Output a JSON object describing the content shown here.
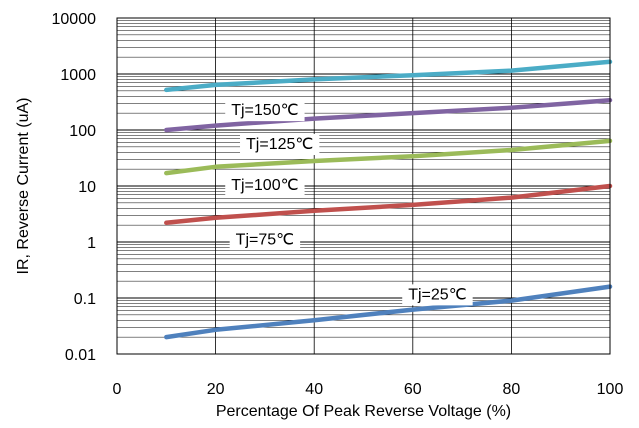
{
  "chart_data": {
    "type": "line",
    "title": "",
    "xlabel": "Percentage Of Peak Reverse Voltage (%)",
    "ylabel": "IR, Reverse Current (uA)",
    "xlim": [
      0,
      100
    ],
    "ylim": [
      0.01,
      10000
    ],
    "yscale": "log",
    "grid": true,
    "x_ticks": [
      "0",
      "20",
      "40",
      "60",
      "80",
      "100"
    ],
    "y_ticks": [
      "0.01",
      "0.1",
      "1",
      "10",
      "100",
      "1000",
      "10000"
    ],
    "x": [
      10,
      20,
      40,
      60,
      80,
      100
    ],
    "series": [
      {
        "name": "Tj=150℃",
        "color": "#4bacc6",
        "values": [
          520,
          640,
          800,
          950,
          1150,
          1650
        ]
      },
      {
        "name": "Tj=125℃",
        "color": "#8064a2",
        "values": [
          100,
          120,
          160,
          200,
          250,
          340
        ]
      },
      {
        "name": "Tj=100℃",
        "color": "#9bbb59",
        "values": [
          17,
          22,
          28,
          34,
          44,
          64
        ]
      },
      {
        "name": "Tj=75℃",
        "color": "#c0504d",
        "values": [
          2.2,
          2.7,
          3.6,
          4.6,
          6.2,
          10
        ]
      },
      {
        "name": "Tj=25℃",
        "color": "#4f81bd",
        "values": [
          0.02,
          0.027,
          0.04,
          0.062,
          0.09,
          0.16
        ]
      }
    ]
  }
}
